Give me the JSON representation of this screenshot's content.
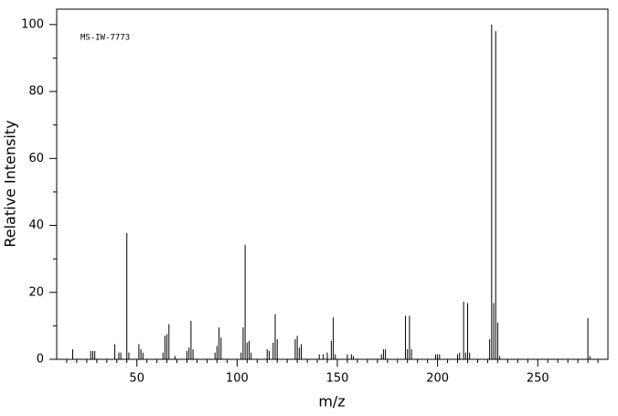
{
  "chart_data": {
    "type": "bar",
    "annotation": "MS-IW-7773",
    "xlabel": "m/z",
    "ylabel": "Relative Intensity",
    "color": "#000000",
    "x": [
      18,
      27,
      28,
      29,
      39,
      41,
      42,
      45,
      46,
      51,
      52,
      53,
      63,
      64,
      65,
      66,
      69,
      75,
      76,
      77,
      78,
      89,
      90,
      91,
      92,
      102,
      103,
      104,
      105,
      106,
      107,
      115,
      116,
      118,
      119,
      120,
      129,
      130,
      131,
      132,
      141,
      143,
      145,
      147,
      148,
      149,
      155,
      157,
      158,
      172,
      173,
      174,
      184,
      185,
      186,
      187,
      199,
      200,
      201,
      210,
      211,
      213,
      214,
      215,
      216,
      226,
      227,
      228,
      229,
      230,
      231,
      275,
      276
    ],
    "values": [
      3,
      2.5,
      2.5,
      2.5,
      4.5,
      2,
      2,
      37.7,
      2,
      4.5,
      3,
      2,
      2,
      7,
      7.5,
      10.5,
      1,
      2.5,
      3.5,
      11.5,
      3,
      2,
      4,
      9.5,
      6.5,
      2,
      9.5,
      34.2,
      5,
      5.5,
      2,
      3,
      2.5,
      5,
      13.5,
      6,
      6,
      7,
      3.5,
      4.5,
      1.5,
      1.5,
      2,
      5.5,
      12.5,
      1.5,
      1.5,
      1.5,
      1,
      1.5,
      3,
      3,
      13,
      3,
      13,
      3,
      1.5,
      1.5,
      1.5,
      1.5,
      2,
      17.2,
      2,
      16.8,
      2,
      6,
      100,
      16.8,
      98,
      11,
      1,
      12.3,
      1
    ],
    "xlim": [
      10,
      285
    ],
    "ylim": [
      0,
      104.6
    ],
    "xticks": [
      50,
      100,
      150,
      200,
      250
    ],
    "yticks": [
      0,
      20,
      40,
      60,
      80,
      100
    ],
    "xminorticks": [
      15,
      20,
      25,
      30,
      35,
      40,
      45,
      55,
      60,
      65,
      70,
      75,
      80,
      85,
      90,
      95,
      105,
      110,
      115,
      120,
      125,
      130,
      135,
      140,
      145,
      155,
      160,
      165,
      170,
      175,
      180,
      185,
      190,
      195,
      205,
      210,
      215,
      220,
      225,
      230,
      235,
      240,
      245,
      255,
      260,
      265,
      270,
      275,
      280
    ],
    "yminorticks": [
      10,
      30,
      50,
      70,
      90
    ]
  }
}
